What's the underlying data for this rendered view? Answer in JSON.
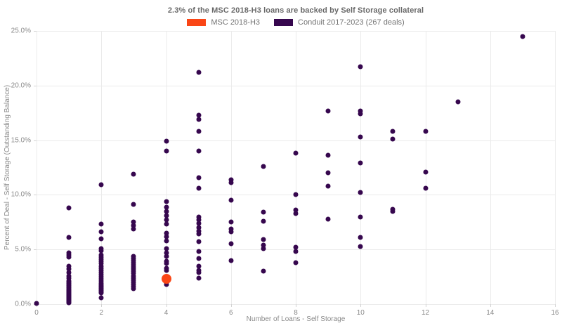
{
  "header": {
    "title": "2.3% of the MSC 2018-H3 loans are backed by Self Storage collateral"
  },
  "legend": {
    "items": [
      {
        "label": "MSC 2018-H3",
        "color": "#fa4616"
      },
      {
        "label": "Conduit 2017-2023 (267 deals)",
        "color": "#36074e"
      }
    ]
  },
  "chart_data": {
    "type": "scatter",
    "title": "2.3% of the MSC 2018-H3 loans are backed by Self Storage collateral",
    "xlabel": "Number of Loans - Self Storage",
    "ylabel": "Percent of Deal - Self Storage (Outstanding Balance)",
    "xlim": [
      0,
      16
    ],
    "ylim": [
      0,
      25
    ],
    "grid": true,
    "legend_position": "top-center",
    "background": "#ffffff",
    "gridline_color": "#ebebeb",
    "x_ticks": {
      "values": [
        0,
        2,
        4,
        6,
        8,
        10,
        12,
        14,
        16
      ],
      "labels": [
        "0",
        "2",
        "4",
        "6",
        "8",
        "10",
        "12",
        "14",
        "16"
      ]
    },
    "y_ticks": {
      "values": [
        0,
        5,
        10,
        15,
        20,
        25
      ],
      "labels": [
        "0.0%",
        "5.0%",
        "10.0%",
        "15.0%",
        "20.0%",
        "25.0%"
      ]
    },
    "series": [
      {
        "name": "Conduit 2017-2023 (267 deals)",
        "color": "#36074e",
        "marker_size": 7,
        "points": [
          [
            0,
            0.05
          ],
          [
            1,
            8.8
          ],
          [
            1,
            6.1
          ],
          [
            1,
            4.7
          ],
          [
            1,
            4.5
          ],
          [
            1,
            4.3
          ],
          [
            1,
            3.5
          ],
          [
            1,
            3.2
          ],
          [
            1,
            2.9
          ],
          [
            1,
            2.6
          ],
          [
            1,
            2.4
          ],
          [
            1,
            2.15
          ],
          [
            1,
            2.05
          ],
          [
            1,
            1.95
          ],
          [
            1,
            1.85
          ],
          [
            1,
            1.75
          ],
          [
            1,
            1.65
          ],
          [
            1,
            1.55
          ],
          [
            1,
            1.45
          ],
          [
            1,
            1.38
          ],
          [
            1,
            1.3
          ],
          [
            1,
            1.22
          ],
          [
            1,
            1.15
          ],
          [
            1,
            1.08
          ],
          [
            1,
            1.0
          ],
          [
            1,
            0.95
          ],
          [
            1,
            0.9
          ],
          [
            1,
            0.85
          ],
          [
            1,
            0.8
          ],
          [
            1,
            0.75
          ],
          [
            1,
            0.7
          ],
          [
            1,
            0.65
          ],
          [
            1,
            0.6
          ],
          [
            1,
            0.55
          ],
          [
            1,
            0.5
          ],
          [
            1,
            0.45
          ],
          [
            1,
            0.4
          ],
          [
            1,
            0.35
          ],
          [
            1,
            0.3
          ],
          [
            1,
            0.25
          ],
          [
            1,
            0.2
          ],
          [
            1,
            0.15
          ],
          [
            1,
            0.1
          ],
          [
            2,
            10.9
          ],
          [
            2,
            7.3
          ],
          [
            2,
            6.6
          ],
          [
            2,
            6.0
          ],
          [
            2,
            5.1
          ],
          [
            2,
            4.9
          ],
          [
            2,
            4.5
          ],
          [
            2,
            4.3
          ],
          [
            2,
            4.1
          ],
          [
            2,
            3.9
          ],
          [
            2,
            3.7
          ],
          [
            2,
            3.5
          ],
          [
            2,
            3.3
          ],
          [
            2,
            3.1
          ],
          [
            2,
            2.9
          ],
          [
            2,
            2.7
          ],
          [
            2,
            2.5
          ],
          [
            2,
            2.3
          ],
          [
            2,
            2.1
          ],
          [
            2,
            1.9
          ],
          [
            2,
            1.8
          ],
          [
            2,
            1.7
          ],
          [
            2,
            1.6
          ],
          [
            2,
            1.5
          ],
          [
            2,
            1.4
          ],
          [
            2,
            1.3
          ],
          [
            2,
            1.2
          ],
          [
            2,
            1.1
          ],
          [
            2,
            1.0
          ],
          [
            2,
            0.6
          ],
          [
            3,
            11.9
          ],
          [
            3,
            9.1
          ],
          [
            3,
            7.5
          ],
          [
            3,
            7.2
          ],
          [
            3,
            6.9
          ],
          [
            3,
            4.4
          ],
          [
            3,
            4.2
          ],
          [
            3,
            4.0
          ],
          [
            3,
            3.8
          ],
          [
            3,
            3.6
          ],
          [
            3,
            3.4
          ],
          [
            3,
            3.2
          ],
          [
            3,
            3.0
          ],
          [
            3,
            2.8
          ],
          [
            3,
            2.6
          ],
          [
            3,
            2.4
          ],
          [
            3,
            2.2
          ],
          [
            3,
            2.0
          ],
          [
            3,
            1.8
          ],
          [
            3,
            1.6
          ],
          [
            3,
            1.4
          ],
          [
            4,
            14.9
          ],
          [
            4,
            14.0
          ],
          [
            4,
            9.4
          ],
          [
            4,
            8.9
          ],
          [
            4,
            8.5
          ],
          [
            4,
            8.1
          ],
          [
            4,
            7.7
          ],
          [
            4,
            7.3
          ],
          [
            4,
            6.5
          ],
          [
            4,
            6.2
          ],
          [
            4,
            5.8
          ],
          [
            4,
            5.1
          ],
          [
            4,
            4.7
          ],
          [
            4,
            4.4
          ],
          [
            4,
            3.9
          ],
          [
            4,
            3.7
          ],
          [
            4,
            3.3
          ],
          [
            4,
            3.1
          ],
          [
            4,
            2.0
          ],
          [
            4,
            1.8
          ],
          [
            5,
            21.2
          ],
          [
            5,
            17.3
          ],
          [
            5,
            16.9
          ],
          [
            5,
            15.8
          ],
          [
            5,
            14.0
          ],
          [
            5,
            11.6
          ],
          [
            5,
            10.6
          ],
          [
            5,
            8.0
          ],
          [
            5,
            7.7
          ],
          [
            5,
            7.4
          ],
          [
            5,
            7.0
          ],
          [
            5,
            6.7
          ],
          [
            5,
            6.4
          ],
          [
            5,
            5.7
          ],
          [
            5,
            4.8
          ],
          [
            5,
            4.2
          ],
          [
            5,
            3.5
          ],
          [
            5,
            3.1
          ],
          [
            5,
            2.9
          ],
          [
            5,
            2.4
          ],
          [
            6,
            11.4
          ],
          [
            6,
            11.1
          ],
          [
            6,
            9.5
          ],
          [
            6,
            7.5
          ],
          [
            6,
            6.9
          ],
          [
            6,
            6.6
          ],
          [
            6,
            5.5
          ],
          [
            6,
            4.0
          ],
          [
            7,
            12.6
          ],
          [
            7,
            8.4
          ],
          [
            7,
            7.6
          ],
          [
            7,
            5.9
          ],
          [
            7,
            5.4
          ],
          [
            7,
            5.1
          ],
          [
            7,
            3.0
          ],
          [
            8,
            13.8
          ],
          [
            8,
            10.0
          ],
          [
            8,
            8.6
          ],
          [
            8,
            8.3
          ],
          [
            8,
            5.2
          ],
          [
            8,
            4.8
          ],
          [
            8,
            3.8
          ],
          [
            9,
            17.7
          ],
          [
            9,
            13.6
          ],
          [
            9,
            12.0
          ],
          [
            9,
            10.8
          ],
          [
            9,
            7.8
          ],
          [
            10,
            21.7
          ],
          [
            10,
            17.7
          ],
          [
            10,
            17.4
          ],
          [
            10,
            15.3
          ],
          [
            10,
            12.9
          ],
          [
            10,
            10.2
          ],
          [
            10,
            8.0
          ],
          [
            10,
            6.1
          ],
          [
            10,
            5.3
          ],
          [
            11,
            15.8
          ],
          [
            11,
            15.1
          ],
          [
            11,
            8.7
          ],
          [
            11,
            8.5
          ],
          [
            12,
            15.8
          ],
          [
            12,
            12.1
          ],
          [
            12,
            10.6
          ],
          [
            13,
            18.5
          ],
          [
            15,
            24.5
          ]
        ]
      },
      {
        "name": "MSC 2018-H3",
        "color": "#fa4616",
        "marker_size": 14,
        "points": [
          [
            4,
            2.3
          ]
        ]
      }
    ]
  }
}
